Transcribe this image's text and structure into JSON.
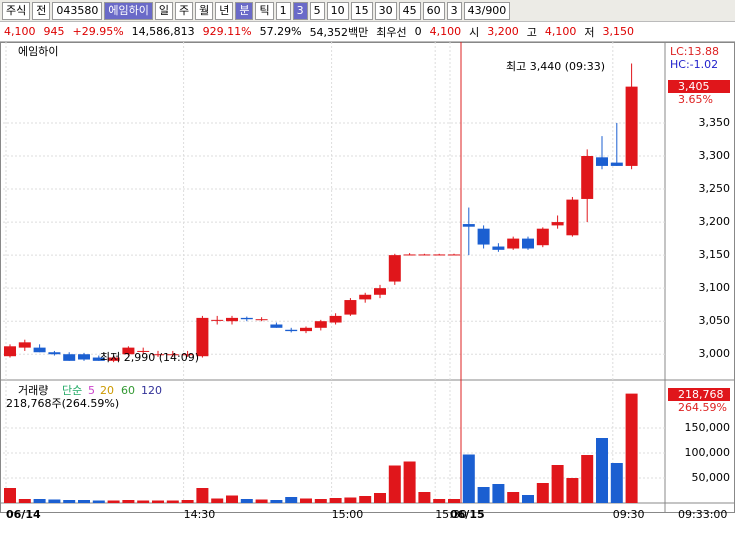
{
  "toolbar": {
    "market": "주식",
    "ref": "전",
    "code": "043580",
    "name": "에임하이",
    "periods": [
      "일",
      "주",
      "월",
      "년",
      "분",
      "틱"
    ],
    "minutes": [
      "1",
      "3",
      "5",
      "10",
      "15",
      "30",
      "45",
      "60"
    ],
    "count": "3",
    "range": "43/900"
  },
  "quote": {
    "price": "4,100",
    "change": "945",
    "change_pct": "+29.95%",
    "volume": "14,586,813",
    "volume_ratio": "929.11%",
    "turnover": "57.29%",
    "amount": "54,352백만",
    "best_label": "최우선",
    "best": "0",
    "ask": "4,100",
    "open_label": "시",
    "open": "3,200",
    "high_label": "고",
    "high": "4,100",
    "low_label": "저",
    "low": "3,150"
  },
  "chart_data": [
    {
      "type": "candlestick",
      "title": "에임하이",
      "categories": [
        "06/14",
        null,
        null,
        null,
        null,
        null,
        null,
        null,
        null,
        null,
        null,
        null,
        "14:30",
        null,
        null,
        null,
        null,
        null,
        null,
        null,
        null,
        null,
        "15:00",
        null,
        null,
        null,
        null,
        null,
        null,
        "15:30",
        "06/15",
        null,
        null,
        null,
        null,
        null,
        null,
        null,
        null,
        null,
        null,
        "09:30",
        null
      ],
      "open": [
        2997,
        3010,
        3010,
        3003,
        3000,
        3000,
        2995,
        2990,
        3000,
        3005,
        3000,
        3000,
        3000,
        2997,
        3052,
        3050,
        3055,
        3053,
        3045,
        3037,
        3035,
        3040,
        3048,
        3060,
        3083,
        3090,
        3110,
        3151,
        3151,
        3151,
        3151,
        3197,
        3190,
        3163,
        3160,
        3175,
        3165,
        3195,
        3180,
        3235,
        3298,
        3290,
        3285
      ],
      "high": [
        3015,
        3022,
        3015,
        3005,
        3003,
        3002,
        2998,
        2998,
        3012,
        3010,
        3005,
        3005,
        3005,
        3058,
        3058,
        3058,
        3057,
        3056,
        3048,
        3040,
        3042,
        3052,
        3062,
        3085,
        3093,
        3105,
        3152,
        3153,
        3152,
        3152,
        3152,
        3222,
        3195,
        3168,
        3178,
        3178,
        3192,
        3210,
        3238,
        3310,
        3330,
        3350,
        3440
      ],
      "low": [
        2995,
        3005,
        3003,
        2998,
        2990,
        2990,
        2990,
        2988,
        2998,
        3000,
        2996,
        2996,
        2996,
        2995,
        3045,
        3045,
        3050,
        3050,
        3040,
        3033,
        3032,
        3036,
        3045,
        3058,
        3078,
        3085,
        3105,
        3150,
        3150,
        3150,
        3150,
        3150,
        3160,
        3155,
        3158,
        3158,
        3162,
        3190,
        3178,
        3200,
        3280,
        3285,
        3280
      ],
      "close": [
        3012,
        3018,
        3003,
        3000,
        2990,
        2992,
        2990,
        2995,
        3010,
        3005,
        3000,
        3000,
        3000,
        3055,
        3052,
        3055,
        3053,
        3053,
        3040,
        3035,
        3040,
        3050,
        3058,
        3082,
        3090,
        3100,
        3150,
        3151,
        3151,
        3151,
        3151,
        3193,
        3166,
        3158,
        3175,
        3160,
        3190,
        3200,
        3234,
        3300,
        3285,
        3285,
        3405
      ],
      "up_color": "#e0161b",
      "down_color": "#1b5fd1",
      "ylim": [
        2961,
        3468
      ],
      "yticks": [
        {
          "value": 3000,
          "label": "3,000"
        },
        {
          "value": 3050,
          "label": "3,050"
        },
        {
          "value": 3100,
          "label": "3,100"
        },
        {
          "value": 3150,
          "label": "3,150"
        },
        {
          "value": 3200,
          "label": "3,200"
        },
        {
          "value": 3250,
          "label": "3,250"
        },
        {
          "value": 3300,
          "label": "3,300"
        },
        {
          "value": 3350,
          "label": "3,350"
        }
      ],
      "grid": true,
      "annotations": {
        "max": "최고 3,440 (09:33)",
        "min": "최저 2,990 (14:09)",
        "lc": "LC:13.88",
        "hc": "HC:-1.02",
        "last": "3,405",
        "last_pct": "3.65%"
      }
    },
    {
      "type": "bar",
      "title": "거래량",
      "legend": [
        "단순",
        "5",
        "20",
        "60",
        "120"
      ],
      "subtitle": "218,768주(264.59%)",
      "values": [
        30000,
        8000,
        8000,
        7000,
        6000,
        6000,
        5000,
        5000,
        6000,
        5000,
        5000,
        5000,
        6000,
        30000,
        9000,
        15000,
        8000,
        7000,
        6000,
        12000,
        9000,
        8000,
        10000,
        11000,
        14000,
        20000,
        75000,
        83000,
        22000,
        8000,
        8000,
        97000,
        32000,
        38000,
        22000,
        16000,
        40000,
        76000,
        50000,
        96000,
        130000,
        80000,
        218768
      ],
      "ylim": [
        0,
        240000
      ],
      "yticks": [
        {
          "value": 50000,
          "label": "50,000"
        },
        {
          "value": 100000,
          "label": "100,000"
        },
        {
          "value": 150000,
          "label": "150,000"
        }
      ],
      "annotations": {
        "last": "218,768",
        "last_pct": "264.59%"
      },
      "time": "09:33:00"
    }
  ]
}
